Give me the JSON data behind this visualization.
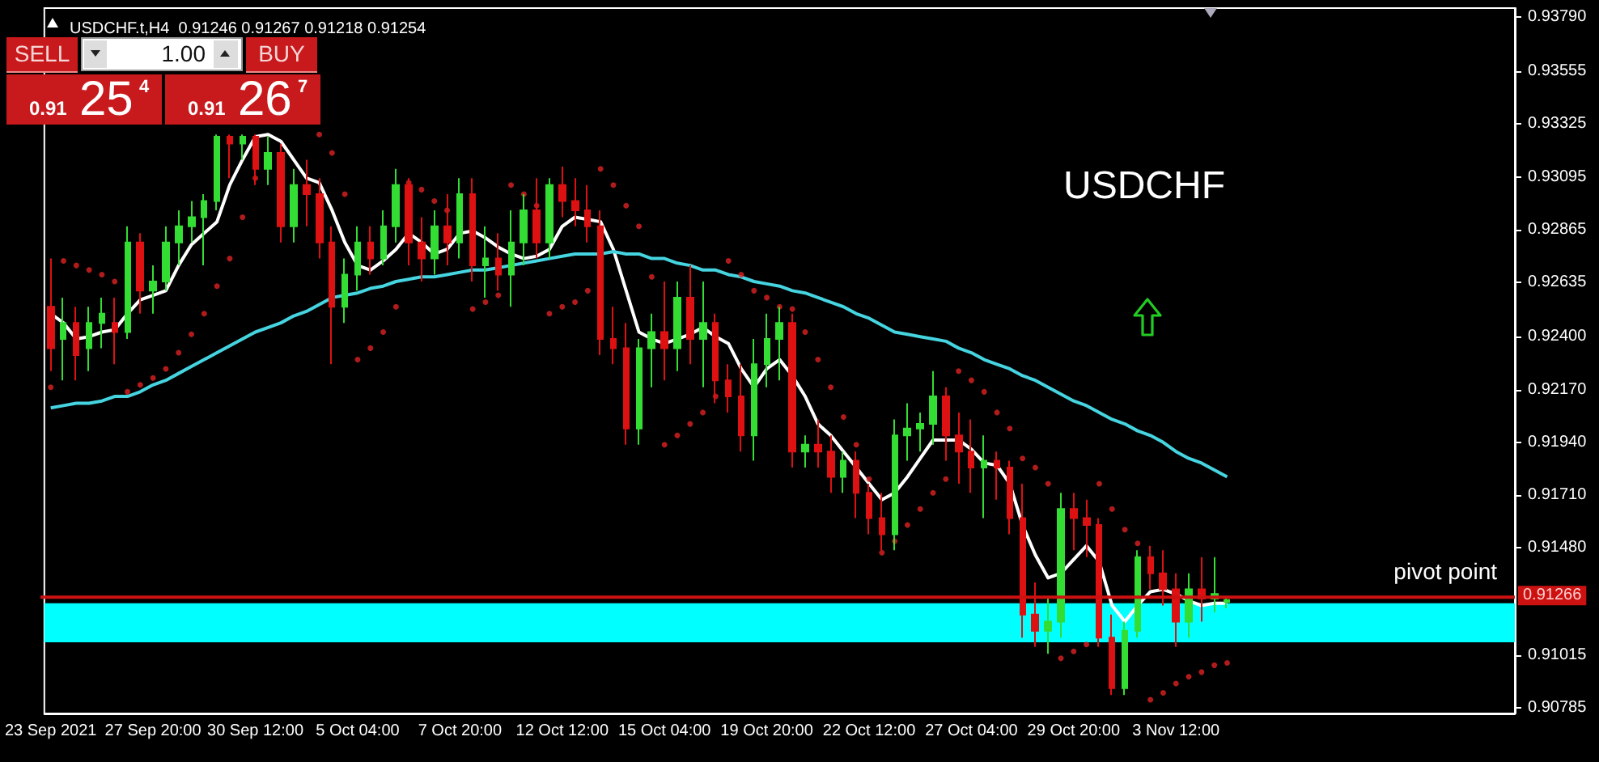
{
  "chart_data": {
    "type": "candlestick",
    "title": "USDCHF.t,H4  0.91246 0.91267 0.91218 0.91254",
    "categories": [
      "23 Sep 2021",
      null,
      null,
      null,
      null,
      null,
      null,
      null,
      "27 Sep 20:00",
      null,
      null,
      null,
      null,
      null,
      null,
      null,
      "30 Sep 12:00",
      null,
      null,
      null,
      null,
      null,
      null,
      null,
      "5 Oct 04:00",
      null,
      null,
      null,
      null,
      null,
      null,
      null,
      "7 Oct 20:00",
      null,
      null,
      null,
      null,
      null,
      null,
      null,
      "12 Oct 12:00",
      null,
      null,
      null,
      null,
      null,
      null,
      null,
      "15 Oct 04:00",
      null,
      null,
      null,
      null,
      null,
      null,
      null,
      "19 Oct 20:00",
      null,
      null,
      null,
      null,
      null,
      null,
      null,
      "22 Oct 12:00",
      null,
      null,
      null,
      null,
      null,
      null,
      null,
      "27 Oct 04:00",
      null,
      null,
      null,
      null,
      null,
      null,
      null,
      "29 Oct 20:00",
      null,
      null,
      null,
      null,
      null,
      null,
      null,
      "3 Nov 12:00",
      null,
      null,
      null,
      null,
      null,
      null,
      null,
      null,
      null,
      null,
      null,
      null,
      null,
      null,
      null,
      null,
      null,
      null,
      null,
      null,
      null,
      null,
      null,
      null,
      null,
      null
    ],
    "ohlc": [
      [
        0.9253,
        0.9274,
        0.9225,
        0.9235
      ],
      [
        0.9239,
        0.9257,
        0.9221,
        0.9246
      ],
      [
        0.9246,
        0.9253,
        0.9221,
        0.9232
      ],
      [
        0.9235,
        0.9253,
        0.9225,
        0.9246
      ],
      [
        0.9246,
        0.9257,
        0.9235,
        0.925
      ],
      [
        0.9246,
        0.9257,
        0.9228,
        0.9242
      ],
      [
        0.9242,
        0.9288,
        0.9239,
        0.9281
      ],
      [
        0.9281,
        0.9285,
        0.925,
        0.926
      ],
      [
        0.926,
        0.9271,
        0.925,
        0.9264
      ],
      [
        0.9264,
        0.9288,
        0.926,
        0.9281
      ],
      [
        0.9281,
        0.9295,
        0.9271,
        0.9288
      ],
      [
        0.9288,
        0.9299,
        0.9281,
        0.9292
      ],
      [
        0.9292,
        0.9302,
        0.9271,
        0.9299
      ],
      [
        0.9299,
        0.9328,
        0.9295,
        0.9327
      ],
      [
        0.9327,
        0.9328,
        0.9309,
        0.9324
      ],
      [
        0.9324,
        0.9328,
        0.9317,
        0.9327
      ],
      [
        0.9327,
        0.9328,
        0.9306,
        0.9313
      ],
      [
        0.9313,
        0.9327,
        0.9306,
        0.932
      ],
      [
        0.932,
        0.9324,
        0.9281,
        0.9288
      ],
      [
        0.9288,
        0.9313,
        0.9281,
        0.9306
      ],
      [
        0.9306,
        0.9317,
        0.9288,
        0.9302
      ],
      [
        0.9302,
        0.9309,
        0.9274,
        0.9281
      ],
      [
        0.9281,
        0.9288,
        0.9228,
        0.9253
      ],
      [
        0.9253,
        0.9274,
        0.9246,
        0.9267
      ],
      [
        0.9267,
        0.9288,
        0.926,
        0.9281
      ],
      [
        0.9281,
        0.9288,
        0.9267,
        0.9274
      ],
      [
        0.9274,
        0.9295,
        0.9271,
        0.9288
      ],
      [
        0.9288,
        0.9313,
        0.9281,
        0.9306
      ],
      [
        0.9306,
        0.9309,
        0.9271,
        0.9281
      ],
      [
        0.9281,
        0.9292,
        0.9264,
        0.9274
      ],
      [
        0.9274,
        0.9295,
        0.9267,
        0.9288
      ],
      [
        0.9288,
        0.9302,
        0.9271,
        0.9281
      ],
      [
        0.9281,
        0.9309,
        0.9274,
        0.9302
      ],
      [
        0.9302,
        0.9309,
        0.9264,
        0.9271
      ],
      [
        0.9271,
        0.9288,
        0.9257,
        0.9274
      ],
      [
        0.9274,
        0.9285,
        0.926,
        0.9267
      ],
      [
        0.9267,
        0.9295,
        0.9253,
        0.9281
      ],
      [
        0.9281,
        0.9302,
        0.9271,
        0.9295
      ],
      [
        0.9295,
        0.9309,
        0.9274,
        0.9281
      ],
      [
        0.9281,
        0.9309,
        0.9274,
        0.9306
      ],
      [
        0.9306,
        0.9314,
        0.9292,
        0.9299
      ],
      [
        0.9299,
        0.9309,
        0.9288,
        0.9295
      ],
      [
        0.9295,
        0.9306,
        0.9281,
        0.9288
      ],
      [
        0.9288,
        0.9295,
        0.9232,
        0.9239
      ],
      [
        0.9239,
        0.9253,
        0.9228,
        0.9235
      ],
      [
        0.9235,
        0.9246,
        0.9193,
        0.92
      ],
      [
        0.92,
        0.9239,
        0.9193,
        0.9235
      ],
      [
        0.9235,
        0.925,
        0.9218,
        0.9242
      ],
      [
        0.9242,
        0.9264,
        0.9221,
        0.9235
      ],
      [
        0.9235,
        0.9264,
        0.9225,
        0.9257
      ],
      [
        0.9257,
        0.9271,
        0.9228,
        0.9239
      ],
      [
        0.9239,
        0.9264,
        0.9218,
        0.9246
      ],
      [
        0.9246,
        0.925,
        0.9211,
        0.9221
      ],
      [
        0.9221,
        0.9228,
        0.9207,
        0.9214
      ],
      [
        0.9214,
        0.9228,
        0.919,
        0.9197
      ],
      [
        0.9197,
        0.9239,
        0.9186,
        0.9228
      ],
      [
        0.9228,
        0.925,
        0.9218,
        0.9239
      ],
      [
        0.9239,
        0.9253,
        0.9221,
        0.9246
      ],
      [
        0.9246,
        0.925,
        0.9183,
        0.919
      ],
      [
        0.919,
        0.9197,
        0.9183,
        0.9193
      ],
      [
        0.9193,
        0.9204,
        0.9183,
        0.919
      ],
      [
        0.919,
        0.9197,
        0.9172,
        0.9179
      ],
      [
        0.9179,
        0.919,
        0.9172,
        0.9186
      ],
      [
        0.9186,
        0.919,
        0.9161,
        0.9172
      ],
      [
        0.9172,
        0.9176,
        0.9154,
        0.9161
      ],
      [
        0.9161,
        0.9172,
        0.9147,
        0.9154
      ],
      [
        0.9154,
        0.9204,
        0.9147,
        0.9197
      ],
      [
        0.9197,
        0.9211,
        0.9186,
        0.92
      ],
      [
        0.92,
        0.9207,
        0.919,
        0.9202
      ],
      [
        0.9202,
        0.9225,
        0.9193,
        0.9214
      ],
      [
        0.9214,
        0.9218,
        0.9186,
        0.9197
      ],
      [
        0.9197,
        0.9207,
        0.9176,
        0.919
      ],
      [
        0.919,
        0.9204,
        0.9172,
        0.9183
      ],
      [
        0.9183,
        0.9197,
        0.9161,
        0.9186
      ],
      [
        0.9186,
        0.919,
        0.9169,
        0.9183
      ],
      [
        0.9183,
        0.9186,
        0.9154,
        0.9161
      ],
      [
        0.9161,
        0.9176,
        0.9109,
        0.9119
      ],
      [
        0.9119,
        0.9133,
        0.9105,
        0.9112
      ],
      [
        0.9112,
        0.9126,
        0.9102,
        0.9116
      ],
      [
        0.9116,
        0.9172,
        0.9109,
        0.9165
      ],
      [
        0.9165,
        0.9172,
        0.9147,
        0.9161
      ],
      [
        0.9161,
        0.9169,
        0.9144,
        0.9158
      ],
      [
        0.9158,
        0.9161,
        0.9105,
        0.9109
      ],
      [
        0.9109,
        0.9119,
        0.9084,
        0.9087
      ],
      [
        0.9087,
        0.9116,
        0.9084,
        0.9112
      ],
      [
        0.9112,
        0.9147,
        0.9109,
        0.9144
      ],
      [
        0.9144,
        0.9149,
        0.913,
        0.9137
      ],
      [
        0.9137,
        0.9147,
        0.9123,
        0.913
      ],
      [
        0.913,
        0.9137,
        0.9105,
        0.9116
      ],
      [
        0.9116,
        0.9137,
        0.9109,
        0.913
      ],
      [
        0.913,
        0.9144,
        0.9116,
        0.9126
      ],
      [
        0.9126,
        0.9144,
        0.912,
        0.9128
      ],
      [
        0.91246,
        0.91267,
        0.91218,
        0.91254
      ],
      null,
      null,
      null,
      null,
      null,
      null,
      null,
      null,
      null,
      null,
      null,
      null,
      null,
      null,
      null,
      null,
      null,
      null,
      null,
      null,
      null,
      null
    ],
    "colors": [
      "#dd1111",
      "#33dd33",
      "#dd1111",
      "#33dd33",
      "#33dd33",
      "#dd1111",
      "#33dd33",
      "#dd1111",
      "#33dd33",
      "#33dd33",
      "#33dd33",
      "#33dd33",
      "#33dd33",
      "#33dd33",
      "#dd1111",
      "#33dd33",
      "#dd1111",
      "#33dd33",
      "#dd1111",
      "#33dd33",
      "#dd1111",
      "#dd1111",
      "#dd1111",
      "#33dd33",
      "#33dd33",
      "#dd1111",
      "#33dd33",
      "#33dd33",
      "#dd1111",
      "#dd1111",
      "#33dd33",
      "#dd1111",
      "#33dd33",
      "#dd1111",
      "#33dd33",
      "#dd1111",
      "#33dd33",
      "#33dd33",
      "#dd1111",
      "#33dd33",
      "#dd1111",
      "#dd1111",
      "#dd1111",
      "#dd1111",
      "#dd1111",
      "#dd1111",
      "#33dd33",
      "#33dd33",
      "#dd1111",
      "#33dd33",
      "#dd1111",
      "#33dd33",
      "#dd1111",
      "#dd1111",
      "#dd1111",
      "#33dd33",
      "#33dd33",
      "#33dd33",
      "#dd1111",
      "#33dd33",
      "#dd1111",
      "#dd1111",
      "#33dd33",
      "#dd1111",
      "#dd1111",
      "#dd1111",
      "#33dd33",
      "#33dd33",
      "#33dd33",
      "#33dd33",
      "#dd1111",
      "#dd1111",
      "#dd1111",
      "#33dd33",
      "#dd1111",
      "#dd1111",
      "#dd1111",
      "#dd1111",
      "#33dd33",
      "#33dd33",
      "#dd1111",
      "#dd1111",
      "#dd1111",
      "#dd1111",
      "#33dd33",
      "#33dd33",
      "#dd1111",
      "#dd1111",
      "#dd1111",
      "#33dd33",
      "#dd1111",
      "#33dd33",
      "#33dd33",
      null,
      null,
      null,
      null,
      null,
      null,
      null,
      null,
      null,
      null,
      null,
      null,
      null,
      null,
      null,
      null,
      null,
      null,
      null,
      null,
      null,
      null
    ],
    "series": [
      {
        "type": "line",
        "color": "#ffffff",
        "marker": "none",
        "values": [
          0.925,
          0.9246,
          0.9239,
          0.924,
          0.9242,
          0.9243,
          0.925,
          0.9256,
          0.9258,
          0.926,
          0.9271,
          0.928,
          0.9285,
          0.929,
          0.9306,
          0.9317,
          0.9327,
          0.9328,
          0.9325,
          0.9317,
          0.9309,
          0.9307,
          0.9295,
          0.9281,
          0.9271,
          0.9269,
          0.9273,
          0.9278,
          0.9285,
          0.9281,
          0.9276,
          0.9278,
          0.9285,
          0.9286,
          0.9283,
          0.9279,
          0.9276,
          0.9274,
          0.9275,
          0.9278,
          0.9288,
          0.9292,
          0.9291,
          0.929,
          0.9278,
          0.926,
          0.9242,
          0.9239,
          0.9237,
          0.9239,
          0.9241,
          0.9244,
          0.924,
          0.9237,
          0.9226,
          0.9218,
          0.9226,
          0.923,
          0.9223,
          0.9214,
          0.9202,
          0.9197,
          0.919,
          0.9183,
          0.9176,
          0.9169,
          0.9172,
          0.9179,
          0.9187,
          0.9195,
          0.9195,
          0.9195,
          0.9191,
          0.9185,
          0.9184,
          0.9176,
          0.9158,
          0.9145,
          0.9135,
          0.9137,
          0.9143,
          0.9149,
          0.9142,
          0.9123,
          0.9116,
          0.9123,
          0.9129,
          0.913,
          0.9128,
          0.9125,
          0.9123,
          0.9124,
          0.9124,
          null,
          null,
          null,
          null,
          null,
          null,
          null,
          null,
          null,
          null,
          null,
          null,
          null,
          null,
          null,
          null,
          null,
          null,
          null,
          null,
          null,
          null
        ]
      },
      {
        "type": "line",
        "color": "#45d4e0",
        "marker": "none",
        "values": [
          0.9209,
          0.921,
          0.9211,
          0.9211,
          0.9212,
          0.9214,
          0.9214,
          0.9216,
          0.9219,
          0.9221,
          0.9224,
          0.9227,
          0.923,
          0.9233,
          0.9236,
          0.9239,
          0.9242,
          0.9244,
          0.9246,
          0.9249,
          0.9251,
          0.9254,
          0.9257,
          0.9258,
          0.9259,
          0.9261,
          0.9262,
          0.9264,
          0.9265,
          0.9266,
          0.9266,
          0.9267,
          0.9268,
          0.9269,
          0.9269,
          0.927,
          0.9271,
          0.9272,
          0.9273,
          0.9274,
          0.9275,
          0.9276,
          0.9276,
          0.9276,
          0.9277,
          0.9276,
          0.9276,
          0.9274,
          0.9274,
          0.9272,
          0.9271,
          0.9269,
          0.9269,
          0.9267,
          0.9266,
          0.9264,
          0.9263,
          0.9262,
          0.926,
          0.9259,
          0.9257,
          0.9255,
          0.9253,
          0.925,
          0.9248,
          0.9245,
          0.9242,
          0.9241,
          0.924,
          0.9239,
          0.9238,
          0.9235,
          0.9233,
          0.923,
          0.9228,
          0.9226,
          0.9223,
          0.9221,
          0.9218,
          0.9215,
          0.9212,
          0.921,
          0.9207,
          0.9204,
          0.9202,
          0.9199,
          0.9197,
          0.9194,
          0.919,
          0.9187,
          0.9185,
          0.9182,
          0.9179,
          null,
          null,
          null,
          null,
          null,
          null,
          null,
          null,
          null,
          null,
          null,
          null,
          null,
          null,
          null,
          null,
          null,
          null,
          null,
          null,
          null,
          null
        ]
      },
      {
        "type": "scatter",
        "color": "#dd2222",
        "marker": "circle",
        "values": [
          0.9218,
          0.9273,
          0.9271,
          0.9269,
          0.9267,
          0.9264,
          0.9216,
          0.9219,
          0.9222,
          0.9226,
          0.9233,
          0.9241,
          0.925,
          0.9262,
          0.9274,
          0.9292,
          0.9309,
          null,
          null,
          null,
          null,
          0.9328,
          0.932,
          0.9302,
          0.923,
          0.9235,
          0.9242,
          0.9253,
          0.9307,
          0.9304,
          0.9299,
          0.9295,
          null,
          0.9252,
          0.9255,
          0.9258,
          0.9306,
          0.9302,
          0.9297,
          0.925,
          0.9253,
          0.9255,
          0.926,
          0.9313,
          0.9306,
          0.9297,
          0.9288,
          0.9266,
          0.9193,
          0.9197,
          0.9202,
          0.9207,
          0.9214,
          0.9273,
          0.9267,
          0.926,
          0.9257,
          0.9253,
          0.9252,
          0.9242,
          0.923,
          0.9218,
          0.9205,
          0.9193,
          0.9178,
          0.9146,
          0.9151,
          0.9158,
          0.9165,
          0.9172,
          0.9178,
          0.9225,
          0.9221,
          0.9216,
          0.9207,
          0.92,
          0.9187,
          0.9183,
          0.9176,
          0.91,
          0.9103,
          0.9106,
          0.9176,
          0.9165,
          0.9156,
          0.915,
          0.9082,
          0.9085,
          0.9089,
          0.9092,
          0.9094,
          0.9097,
          0.9098,
          null,
          null,
          null,
          null,
          null,
          null,
          null,
          null,
          null,
          null,
          null,
          null,
          null,
          null,
          null,
          null,
          null,
          null,
          null,
          null,
          null,
          null
        ]
      }
    ],
    "ylim": [
      0.9076,
      0.9383
    ],
    "yticks": [
      {
        "value": 0.9379,
        "label": "0.93790"
      },
      {
        "value": 0.93555,
        "label": "0.93555"
      },
      {
        "value": 0.93325,
        "label": "0.93325"
      },
      {
        "value": 0.93095,
        "label": "0.93095"
      },
      {
        "value": 0.92865,
        "label": "0.92865"
      },
      {
        "value": 0.92635,
        "label": "0.92635"
      },
      {
        "value": 0.924,
        "label": "0.92400"
      },
      {
        "value": 0.9217,
        "label": "0.92170"
      },
      {
        "value": 0.9194,
        "label": "0.91940"
      },
      {
        "value": 0.9171,
        "label": "0.91710"
      },
      {
        "value": 0.9148,
        "label": "0.91480"
      },
      {
        "value": 0.91015,
        "label": "0.91015"
      },
      {
        "value": 0.90785,
        "label": "0.90785"
      }
    ],
    "ref_lines": [
      {
        "axis": "y",
        "value": 0.91266,
        "label": "0.91266",
        "color": "#cc1111",
        "line_style": "solid"
      }
    ],
    "bands": [
      {
        "axis": "y",
        "from": 0.9107,
        "to": 0.9124,
        "color": "#00ffff"
      }
    ],
    "annotations": [
      "USDCHF",
      "pivot point",
      "SELL",
      "1.00",
      "BUY",
      "0.91",
      "25",
      "4",
      "0.91",
      "26",
      "7"
    ]
  }
}
